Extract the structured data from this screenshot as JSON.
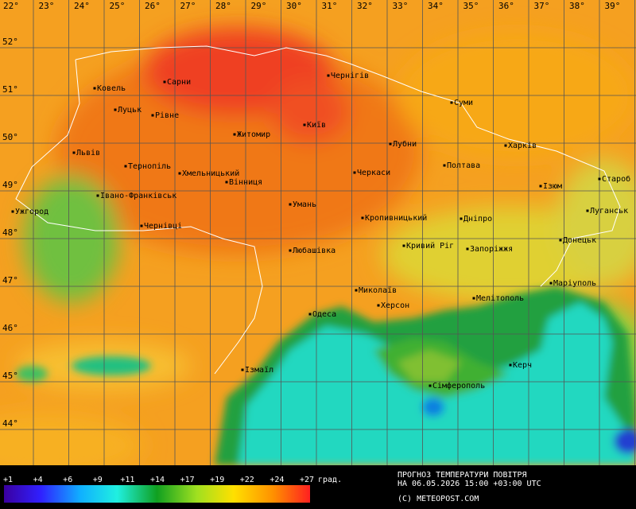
{
  "map": {
    "lon_labels": [
      "22°",
      "23°",
      "24°",
      "25°",
      "26°",
      "27°",
      "28°",
      "29°",
      "30°",
      "31°",
      "32°",
      "33°",
      "34°",
      "35°",
      "36°",
      "37°",
      "38°",
      "39°"
    ],
    "lat_labels": [
      "52°",
      "51°",
      "50°",
      "49°",
      "48°",
      "47°",
      "46°",
      "45°",
      "44°"
    ],
    "cities": [
      "Ковель",
      "Сарни",
      "Чернігів",
      "Луцьк",
      "Рівне",
      "Суми",
      "Київ",
      "Житомир",
      "Львів",
      "Лубни",
      "Харків",
      "Тернопіль",
      "Хмельницький",
      "Черкаси",
      "Полтава",
      "Вінниця",
      "Ізюм",
      "Староб",
      "Івано-Франківськ",
      "Ужгород",
      "Умань",
      "Кропивницький",
      "Дніпро",
      "Луганськ",
      "Чернівці",
      "Донецьк",
      "Кривий Ріг",
      "Любашівка",
      "Запоріжжя",
      "Маріуполь",
      "Миколаїв",
      "Мелітополь",
      "Херсон",
      "Одеса",
      "Керч",
      "Ізмаїл",
      "Сімферополь"
    ]
  },
  "legend": {
    "ticks": [
      "+1",
      "+4",
      "+6",
      "+9",
      "+11",
      "+14",
      "+17",
      "+19",
      "+22",
      "+24",
      "+27"
    ],
    "unit": "град.",
    "title": "ПРОГНОЗ ТЕМПЕРАТУРИ ПОВІТРЯ",
    "date": "НА 06.05.2026 15:00 +03:00 UTC",
    "credit": "(C) METEOPOST.COM"
  }
}
